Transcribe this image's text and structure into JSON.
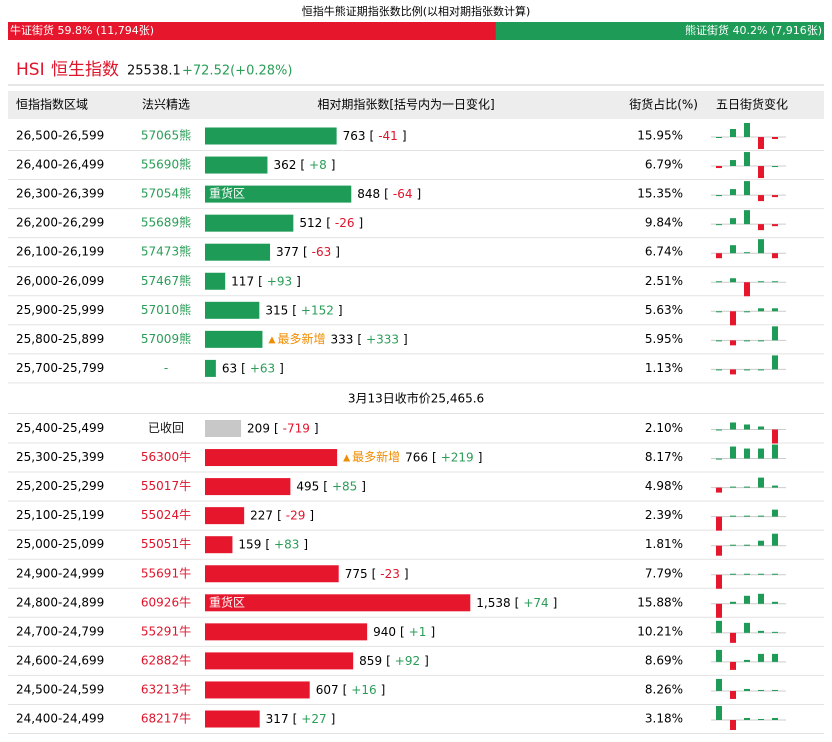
{
  "title": "恒指牛熊证期指张数比例(以相对期指张数计算)",
  "ratio": {
    "bull": {
      "label": "牛证街货 59.8% (11,794张)",
      "share": 59.8
    },
    "bear": {
      "label": "熊证街货 40.2% (7,916张)",
      "share": 40.2
    }
  },
  "index": {
    "code": "HSI",
    "name": "恒生指数",
    "price": "25538.1",
    "change": "+72.52(+0.28%)"
  },
  "symbols": {
    "open": "[",
    "close": "]"
  },
  "table": {
    "headers": [
      "恒指指数区域",
      "法兴精选",
      "相对期指张数[括号内为一日变化]",
      "街货占比(%)",
      "五日街货变化"
    ],
    "bear_rows": [
      {
        "range": "26,500-26,599",
        "product": "57065熊",
        "count": 763,
        "change": "-41",
        "share": "15.95%",
        "five_day": [
          0,
          8,
          14,
          -12,
          -2
        ]
      },
      {
        "range": "26,400-26,499",
        "product": "55690熊",
        "count": 362,
        "change": "+8",
        "share": "6.79%",
        "five_day": [
          -2,
          6,
          14,
          -12,
          0
        ]
      },
      {
        "range": "26,300-26,399",
        "product": "57054熊",
        "count": 848,
        "change": "-64",
        "share": "15.35%",
        "tag": "重货区",
        "five_day": [
          0,
          6,
          14,
          -6,
          -2
        ]
      },
      {
        "range": "26,200-26,299",
        "product": "55689熊",
        "count": 512,
        "change": "-26",
        "share": "9.84%",
        "five_day": [
          0,
          6,
          14,
          -6,
          -2
        ]
      },
      {
        "range": "26,100-26,199",
        "product": "57473熊",
        "count": 377,
        "change": "-63",
        "share": "6.74%",
        "five_day": [
          -5,
          8,
          1,
          14,
          -5
        ]
      },
      {
        "range": "26,000-26,099",
        "product": "57467熊",
        "count": 117,
        "change": "+93",
        "share": "2.51%",
        "five_day": [
          1,
          4,
          -14,
          1,
          1
        ]
      },
      {
        "range": "25,900-25,999",
        "product": "57010熊",
        "count": 315,
        "change": "+152",
        "share": "5.63%",
        "five_day": [
          0,
          -14,
          0,
          3,
          3
        ]
      },
      {
        "range": "25,800-25,899",
        "product": "57009熊",
        "count": 333,
        "change": "+333",
        "share": "5.95%",
        "new": "最多新增",
        "five_day": [
          0,
          -5,
          0,
          0,
          14
        ]
      },
      {
        "range": "25,700-25,799",
        "product": "-",
        "count": 63,
        "change": "+63",
        "share": "1.13%",
        "five_day": [
          0,
          -5,
          0,
          0,
          14
        ]
      }
    ],
    "close_row": "3月13日收市价25,465.6",
    "bull_rows": [
      {
        "range": "25,400-25,499",
        "product": "已收回",
        "count": 209,
        "change": "-719",
        "share": "2.10%",
        "five_day": [
          0,
          7,
          5,
          3,
          -14
        ]
      },
      {
        "range": "25,300-25,399",
        "product": "56300牛",
        "count": 766,
        "change": "+219",
        "share": "8.17%",
        "new": "最多新增",
        "five_day": [
          0,
          12,
          10,
          10,
          14
        ]
      },
      {
        "range": "25,200-25,299",
        "product": "55017牛",
        "count": 495,
        "change": "+85",
        "share": "4.98%",
        "five_day": [
          -5,
          1,
          1,
          10,
          2
        ]
      },
      {
        "range": "25,100-25,199",
        "product": "55024牛",
        "count": 227,
        "change": "-29",
        "share": "2.39%",
        "five_day": [
          -14,
          1,
          1,
          1,
          7
        ]
      },
      {
        "range": "25,000-25,099",
        "product": "55051牛",
        "count": 159,
        "change": "+83",
        "share": "1.81%",
        "five_day": [
          -10,
          1,
          1,
          5,
          12
        ]
      },
      {
        "range": "24,900-24,999",
        "product": "55691牛",
        "count": 775,
        "change": "-23",
        "share": "7.79%",
        "five_day": [
          -14,
          1,
          1,
          1,
          1
        ]
      },
      {
        "range": "24,800-24,899",
        "product": "60926牛",
        "count": 1538,
        "count_label": "1,538",
        "change": "+74",
        "share": "15.88%",
        "tag": "重货区",
        "five_day": [
          -14,
          2,
          8,
          10,
          2
        ]
      },
      {
        "range": "24,700-24,799",
        "product": "55291牛",
        "count": 940,
        "change": "+1",
        "share": "10.21%",
        "five_day": [
          12,
          -10,
          10,
          2,
          1
        ]
      },
      {
        "range": "24,600-24,699",
        "product": "62882牛",
        "count": 859,
        "change": "+92",
        "share": "8.69%",
        "five_day": [
          12,
          -8,
          2,
          8,
          8
        ]
      },
      {
        "range": "24,500-24,599",
        "product": "63213牛",
        "count": 607,
        "change": "+16",
        "share": "8.26%",
        "five_day": [
          12,
          -8,
          2,
          1,
          1
        ]
      },
      {
        "range": "24,400-24,499",
        "product": "68217牛",
        "count": 317,
        "change": "+27",
        "share": "3.18%",
        "five_day": [
          14,
          -10,
          2,
          1,
          2
        ]
      }
    ]
  }
}
